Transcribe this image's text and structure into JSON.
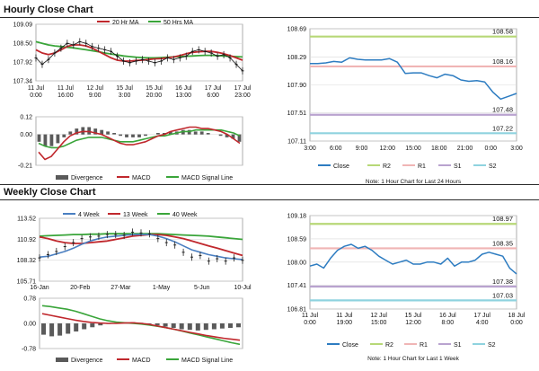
{
  "sections": {
    "hourly_title": "Hourly Close Chart",
    "weekly_title": "Weekly Close Chart"
  },
  "colors": {
    "price": "#111111",
    "ma_short": "#c0282d",
    "ma_long": "#3aa53a",
    "week4": "#4a7fc1",
    "close": "#2d7cc1",
    "r2": "#b7d877",
    "r1": "#f0b5b5",
    "s1": "#b9a3cf",
    "s2": "#8fd3df",
    "divergence": "#5a5a5a",
    "macd": "#c0282d",
    "signal": "#3aa53a"
  },
  "chart_data": [
    {
      "id": "hourly_price",
      "type": "line",
      "legend": [
        "20 Hr MA",
        "50 Hrs MA"
      ],
      "yticks": [
        "109.09",
        "108.50",
        "107.92",
        "107.34"
      ],
      "ylim": [
        107.34,
        109.09
      ],
      "xticks": [
        "11 Jul\n0:00",
        "11 Jul\n16:00",
        "12 Jul\n9:00",
        "15 Jul\n3:00",
        "15 Jul\n20:00",
        "16 Jul\n13:00",
        "17 Jul\n6:00",
        "17 Jul\n23:00"
      ],
      "close": [
        108.05,
        107.85,
        108.0,
        108.2,
        108.35,
        108.5,
        108.45,
        108.55,
        108.5,
        108.4,
        108.35,
        108.3,
        108.25,
        108.1,
        107.95,
        107.9,
        107.95,
        108.0,
        107.95,
        107.9,
        107.95,
        108.05,
        108.0,
        108.05,
        108.1,
        108.25,
        108.3,
        108.25,
        108.2,
        108.1,
        108.15,
        108.05,
        107.85,
        107.65
      ],
      "series": [
        {
          "name": "20 Hr MA",
          "values": [
            108.3,
            108.2,
            108.15,
            108.2,
            108.3,
            108.4,
            108.45,
            108.45,
            108.42,
            108.35,
            108.25,
            108.15,
            108.05,
            107.98,
            107.95,
            107.95,
            107.97,
            107.98,
            108.0,
            108.02,
            108.03,
            108.05,
            108.08,
            108.12,
            108.18,
            108.22,
            108.24,
            108.25,
            108.25,
            108.22,
            108.18,
            108.12,
            108.05,
            107.98
          ]
        },
        {
          "name": "50 Hrs MA",
          "values": [
            108.55,
            108.5,
            108.45,
            108.42,
            108.4,
            108.38,
            108.36,
            108.33,
            108.3,
            108.27,
            108.24,
            108.2,
            108.17,
            108.14,
            108.11,
            108.09,
            108.07,
            108.06,
            108.05,
            108.05,
            108.06,
            108.07,
            108.08,
            108.09,
            108.1,
            108.11,
            108.12,
            108.13,
            108.13,
            108.12,
            108.11,
            108.1,
            108.09,
            108.08
          ]
        }
      ]
    },
    {
      "id": "hourly_macd",
      "type": "bar",
      "legend": [
        "Divergence",
        "MACD",
        "MACD Signal Line"
      ],
      "yticks": [
        "0.12",
        "0.00",
        "-0.21"
      ],
      "ylim": [
        -0.21,
        0.12
      ],
      "divergence": [
        -0.05,
        -0.08,
        -0.08,
        -0.06,
        -0.02,
        0.02,
        0.04,
        0.05,
        0.05,
        0.04,
        0.03,
        0.02,
        0.01,
        -0.01,
        -0.02,
        -0.02,
        -0.02,
        -0.01,
        0.0,
        0.01,
        0.01,
        0.02,
        0.02,
        0.03,
        0.03,
        0.02,
        0.02,
        0.01,
        0.0,
        -0.01,
        -0.02,
        -0.03,
        -0.05
      ],
      "series": [
        {
          "name": "MACD",
          "values": [
            -0.12,
            -0.17,
            -0.15,
            -0.1,
            -0.05,
            -0.01,
            0.01,
            0.02,
            0.02,
            0.01,
            0.0,
            -0.02,
            -0.04,
            -0.06,
            -0.07,
            -0.07,
            -0.06,
            -0.05,
            -0.03,
            -0.01,
            0.0,
            0.02,
            0.03,
            0.04,
            0.05,
            0.05,
            0.04,
            0.04,
            0.03,
            0.02,
            0.0,
            -0.03,
            -0.06
          ]
        },
        {
          "name": "MACD Signal Line",
          "values": [
            -0.06,
            -0.08,
            -0.09,
            -0.09,
            -0.08,
            -0.06,
            -0.04,
            -0.03,
            -0.02,
            -0.02,
            -0.02,
            -0.03,
            -0.04,
            -0.05,
            -0.05,
            -0.05,
            -0.04,
            -0.03,
            -0.02,
            -0.01,
            -0.01,
            0.0,
            0.01,
            0.02,
            0.02,
            0.03,
            0.03,
            0.03,
            0.03,
            0.03,
            0.02,
            0.01,
            -0.01
          ]
        }
      ]
    },
    {
      "id": "hourly_pivot",
      "type": "line",
      "legend": [
        "Close",
        "R2",
        "R1",
        "S1",
        "S2"
      ],
      "yticks": [
        "108.69",
        "108.29",
        "107.90",
        "107.51",
        "107.11"
      ],
      "ylim": [
        107.11,
        108.69
      ],
      "xticks": [
        "3:00",
        "6:00",
        "9:00",
        "12:00",
        "15:00",
        "18:00",
        "21:00",
        "0:00",
        "3:00"
      ],
      "levels": {
        "R2": "108.58",
        "R1": "108.16",
        "S1": "107.48",
        "S2": "107.22"
      },
      "close": [
        108.2,
        108.2,
        108.21,
        108.23,
        108.22,
        108.28,
        108.26,
        108.25,
        108.25,
        108.25,
        108.27,
        108.22,
        108.06,
        108.07,
        108.07,
        108.03,
        108.0,
        108.05,
        108.03,
        107.97,
        107.95,
        107.96,
        107.94,
        107.8,
        107.7,
        107.74,
        107.78
      ],
      "note": "Note: 1 Hour Chart for Last 24 Hours"
    },
    {
      "id": "weekly_price",
      "type": "line",
      "legend": [
        "4 Week",
        "13 Week",
        "40 Week"
      ],
      "yticks": [
        "113.52",
        "110.92",
        "108.32",
        "105.71"
      ],
      "ylim": [
        105.71,
        113.52
      ],
      "xticks": [
        "16-Jan",
        "20-Feb",
        "27-Mar",
        "1-May",
        "5-Jun",
        "10-Jul"
      ],
      "close": [
        108.6,
        109.0,
        109.4,
        110.0,
        110.5,
        111.0,
        111.2,
        111.3,
        111.5,
        111.5,
        111.4,
        111.8,
        111.7,
        111.6,
        111.0,
        110.5,
        110.2,
        109.3,
        108.7,
        108.9,
        108.2,
        108.5,
        108.2,
        108.6,
        108.3
      ],
      "series": [
        {
          "name": "4 Week",
          "values": [
            108.7,
            108.8,
            109.1,
            109.4,
            109.8,
            110.3,
            110.7,
            111.0,
            111.2,
            111.3,
            111.4,
            111.5,
            111.5,
            111.5,
            111.3,
            111.0,
            110.6,
            110.1,
            109.6,
            109.3,
            109.0,
            108.8,
            108.6,
            108.5,
            108.4
          ]
        },
        {
          "name": "13 Week",
          "values": [
            111.2,
            111.0,
            110.7,
            110.5,
            110.4,
            110.4,
            110.5,
            110.6,
            110.7,
            110.9,
            111.1,
            111.3,
            111.4,
            111.5,
            111.5,
            111.4,
            111.2,
            111.0,
            110.7,
            110.4,
            110.1,
            109.8,
            109.5,
            109.2,
            108.9
          ]
        },
        {
          "name": "40 Week",
          "values": [
            111.3,
            111.35,
            111.4,
            111.45,
            111.5,
            111.5,
            111.55,
            111.55,
            111.6,
            111.6,
            111.6,
            111.6,
            111.6,
            111.6,
            111.6,
            111.55,
            111.5,
            111.45,
            111.4,
            111.35,
            111.3,
            111.2,
            111.1,
            111.0,
            110.9
          ]
        }
      ]
    },
    {
      "id": "weekly_macd",
      "type": "bar",
      "legend": [
        "Divergence",
        "MACD",
        "MACD Signal Line"
      ],
      "yticks": [
        "0.78",
        "0.00",
        "-0.78"
      ],
      "ylim": [
        -0.78,
        0.78
      ],
      "divergence": [
        -0.35,
        -0.4,
        -0.38,
        -0.32,
        -0.25,
        -0.18,
        -0.12,
        -0.06,
        -0.02,
        0.02,
        0.03,
        0.04,
        0.02,
        -0.02,
        -0.06,
        -0.1,
        -0.14,
        -0.18,
        -0.2,
        -0.22,
        -0.2,
        -0.18,
        -0.16,
        -0.14,
        -0.12
      ],
      "series": [
        {
          "name": "MACD",
          "values": [
            0.3,
            0.25,
            0.2,
            0.15,
            0.1,
            0.06,
            0.03,
            0.01,
            0.0,
            0.0,
            0.01,
            0.02,
            0.0,
            -0.03,
            -0.08,
            -0.13,
            -0.18,
            -0.23,
            -0.28,
            -0.33,
            -0.38,
            -0.42,
            -0.46,
            -0.49,
            -0.52
          ]
        },
        {
          "name": "MACD Signal Line",
          "values": [
            0.55,
            0.52,
            0.48,
            0.44,
            0.38,
            0.3,
            0.22,
            0.14,
            0.08,
            0.04,
            0.02,
            0.0,
            -0.02,
            -0.05,
            -0.09,
            -0.13,
            -0.18,
            -0.24,
            -0.3,
            -0.36,
            -0.42,
            -0.48,
            -0.54,
            -0.6,
            -0.65
          ]
        }
      ]
    },
    {
      "id": "weekly_pivot",
      "type": "line",
      "legend": [
        "Close",
        "R2",
        "R1",
        "S1",
        "S2"
      ],
      "yticks": [
        "109.18",
        "108.59",
        "108.00",
        "107.41",
        "106.81"
      ],
      "ylim": [
        106.81,
        109.18
      ],
      "xticks": [
        "11 Jul\n0:00",
        "11 Jul\n19:00",
        "12 Jul\n15:00",
        "15 Jul\n12:00",
        "16 Jul\n8:00",
        "17 Jul\n4:00",
        "18 Jul\n0:00"
      ],
      "levels": {
        "R2": "108.97",
        "R1": "108.35",
        "S1": "107.38",
        "S2": "107.03"
      },
      "close": [
        107.9,
        107.95,
        107.85,
        108.1,
        108.3,
        108.4,
        108.45,
        108.35,
        108.4,
        108.3,
        108.15,
        108.05,
        107.95,
        108.0,
        108.05,
        107.95,
        107.95,
        108.0,
        108.0,
        107.95,
        108.1,
        107.9,
        108.0,
        108.0,
        108.05,
        108.2,
        108.25,
        108.2,
        108.15,
        107.85,
        107.7
      ],
      "note": "Note: 1 Hour Chart for Last 1 Week"
    }
  ]
}
